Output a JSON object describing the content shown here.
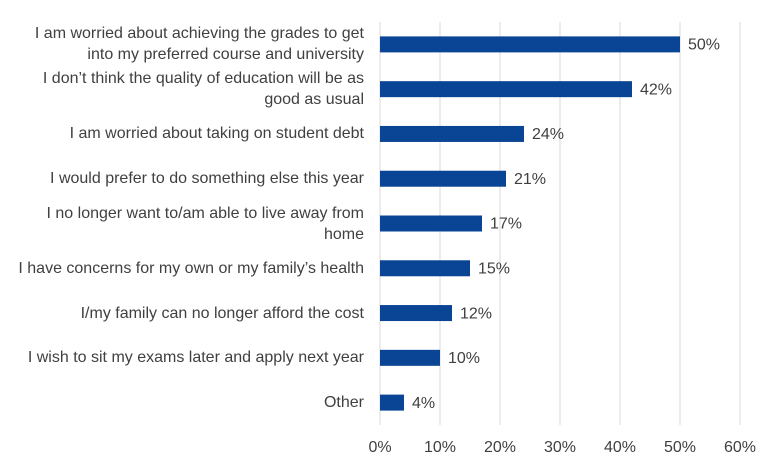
{
  "chart_data": {
    "type": "bar",
    "orientation": "horizontal",
    "categories": [
      "I am worried about achieving the grades to get into my preferred course and university",
      "I don’t think the quality of education will be as good as usual",
      "I am worried about taking on student debt",
      "I would prefer to do something else this year",
      "I no longer want to/am able to live away from home",
      "I have concerns for my own or my family’s health",
      "I/my family can no longer afford the cost",
      "I wish to sit my exams later and apply next year",
      "Other"
    ],
    "values": [
      50,
      42,
      24,
      21,
      17,
      15,
      12,
      10,
      4
    ],
    "value_labels": [
      "50%",
      "42%",
      "24%",
      "21%",
      "17%",
      "15%",
      "12%",
      "10%",
      "4%"
    ],
    "color": "#0a4595",
    "xlim": [
      0,
      60
    ],
    "xticks": [
      {
        "value": 0,
        "label": "0%"
      },
      {
        "value": 10,
        "label": "10%"
      },
      {
        "value": 20,
        "label": "20%"
      },
      {
        "value": 30,
        "label": "30%"
      },
      {
        "value": 40,
        "label": "40%"
      },
      {
        "value": 50,
        "label": "50%"
      },
      {
        "value": 60,
        "label": "60%"
      }
    ],
    "grid": true
  }
}
